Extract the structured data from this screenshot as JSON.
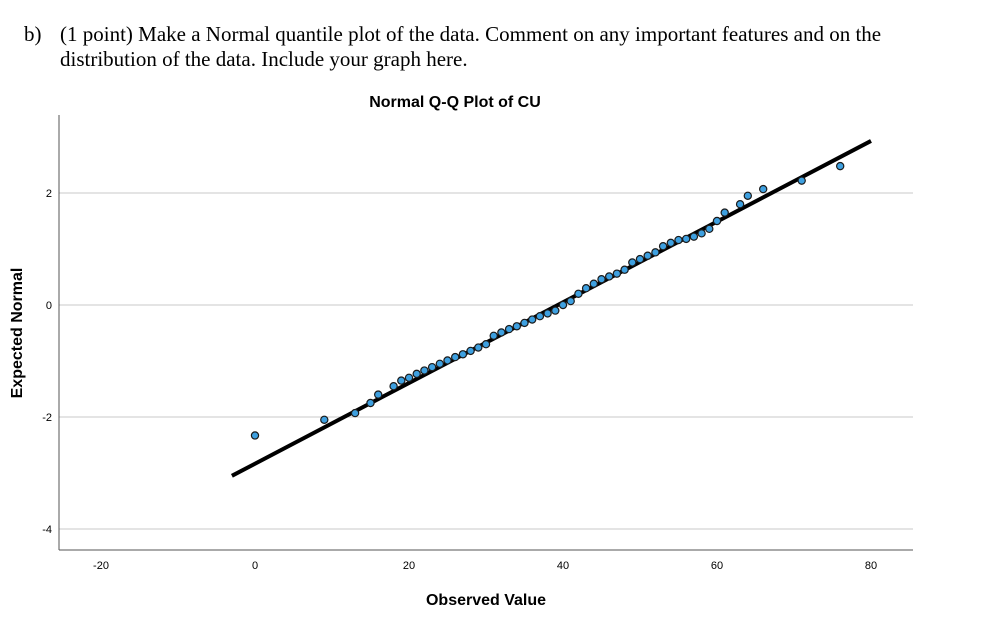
{
  "question": {
    "label": "b)",
    "text": "(1 point) Make a Normal quantile plot of the data. Comment on any important features and on the distribution of the data. Include your graph here."
  },
  "chart_data": {
    "type": "scatter",
    "title": "Normal Q-Q Plot of CU",
    "xlabel": "Observed Value",
    "ylabel": "Expected Normal",
    "xlim": [
      -25,
      85
    ],
    "ylim": [
      -4.4,
      3.4
    ],
    "x_ticks": [
      -20,
      0,
      20,
      40,
      60,
      80
    ],
    "y_ticks": [
      2,
      0,
      -2,
      -4
    ],
    "grid": "horizontal",
    "point_color": "#3ea0e0",
    "line_color": "#000000",
    "reference_line": {
      "x": [
        -3,
        80
      ],
      "y": [
        -3.05,
        2.93
      ]
    },
    "points": [
      [
        0,
        -2.33
      ],
      [
        9,
        -2.05
      ],
      [
        13,
        -1.93
      ],
      [
        15,
        -1.75
      ],
      [
        16,
        -1.6
      ],
      [
        18,
        -1.45
      ],
      [
        19,
        -1.35
      ],
      [
        20,
        -1.3
      ],
      [
        21,
        -1.23
      ],
      [
        22,
        -1.17
      ],
      [
        23,
        -1.11
      ],
      [
        24,
        -1.05
      ],
      [
        25,
        -0.99
      ],
      [
        26,
        -0.93
      ],
      [
        27,
        -0.88
      ],
      [
        28,
        -0.82
      ],
      [
        29,
        -0.76
      ],
      [
        30,
        -0.7
      ],
      [
        31,
        -0.55
      ],
      [
        32,
        -0.49
      ],
      [
        33,
        -0.43
      ],
      [
        34,
        -0.38
      ],
      [
        35,
        -0.32
      ],
      [
        36,
        -0.26
      ],
      [
        37,
        -0.2
      ],
      [
        38,
        -0.15
      ],
      [
        39,
        -0.1
      ],
      [
        40,
        0.0
      ],
      [
        41,
        0.07
      ],
      [
        42,
        0.2
      ],
      [
        43,
        0.3
      ],
      [
        44,
        0.38
      ],
      [
        45,
        0.46
      ],
      [
        46,
        0.51
      ],
      [
        47,
        0.56
      ],
      [
        48,
        0.63
      ],
      [
        49,
        0.76
      ],
      [
        50,
        0.82
      ],
      [
        51,
        0.88
      ],
      [
        52,
        0.94
      ],
      [
        53,
        1.05
      ],
      [
        54,
        1.11
      ],
      [
        55,
        1.16
      ],
      [
        56,
        1.18
      ],
      [
        57,
        1.22
      ],
      [
        58,
        1.28
      ],
      [
        59,
        1.36
      ],
      [
        60,
        1.5
      ],
      [
        61,
        1.65
      ],
      [
        63,
        1.8
      ],
      [
        64,
        1.95
      ],
      [
        66,
        2.07
      ],
      [
        71,
        2.22
      ],
      [
        76,
        2.48
      ]
    ]
  }
}
